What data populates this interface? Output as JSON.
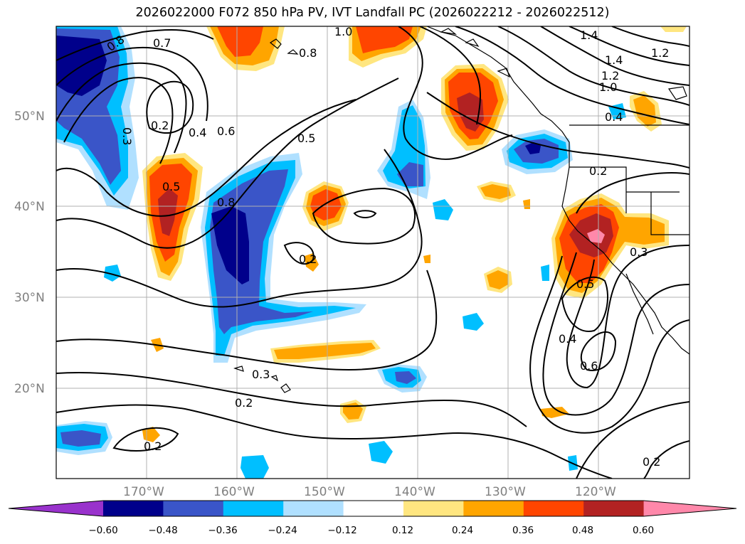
{
  "title": "2026022000 F072 850 hPa PV, IVT Landfall PC (2026022212 - 2026022512)",
  "latitude_labels": [
    "50°N",
    "40°N",
    "30°N",
    "20°N"
  ],
  "longitude_labels": [
    "170°W",
    "160°W",
    "150°W",
    "140°W",
    "130°W",
    "120°W"
  ],
  "colorbar": {
    "ticks": [
      "−0.60",
      "−0.48",
      "−0.36",
      "−0.24",
      "−0.12",
      "0.12",
      "0.24",
      "0.36",
      "0.48",
      "0.60"
    ],
    "colors": [
      "#9932cc",
      "#00008b",
      "#3a55c8",
      "#00bfff",
      "#b0e0ff",
      "#ffffff",
      "#ffe680",
      "#ffa500",
      "#ff4500",
      "#b22222",
      "#ff88aa"
    ]
  },
  "contour_labels": [
    "0.8",
    "0.7",
    "1.0",
    "0.8",
    "1.4",
    "1.2",
    "1.4",
    "1.2",
    "1.0",
    "0.3",
    "0.2",
    "0.4",
    "0.6",
    "0.5",
    "0.5",
    "0.8",
    "0.4",
    "0.2",
    "0.2",
    "0.3",
    "0.5",
    "0.4",
    "0.6",
    "0.3",
    "0.2",
    "0.2",
    "0.2"
  ],
  "map": {
    "projection": "cylindrical",
    "lon_range": [
      "180°W",
      "110°W"
    ],
    "lat_range": [
      "10°N",
      "60°N"
    ],
    "gridlines": true,
    "fills": {
      "negative": "blue shades (PV anomaly below zero)",
      "positive": "orange/red shades (PV anomaly above zero)"
    }
  }
}
